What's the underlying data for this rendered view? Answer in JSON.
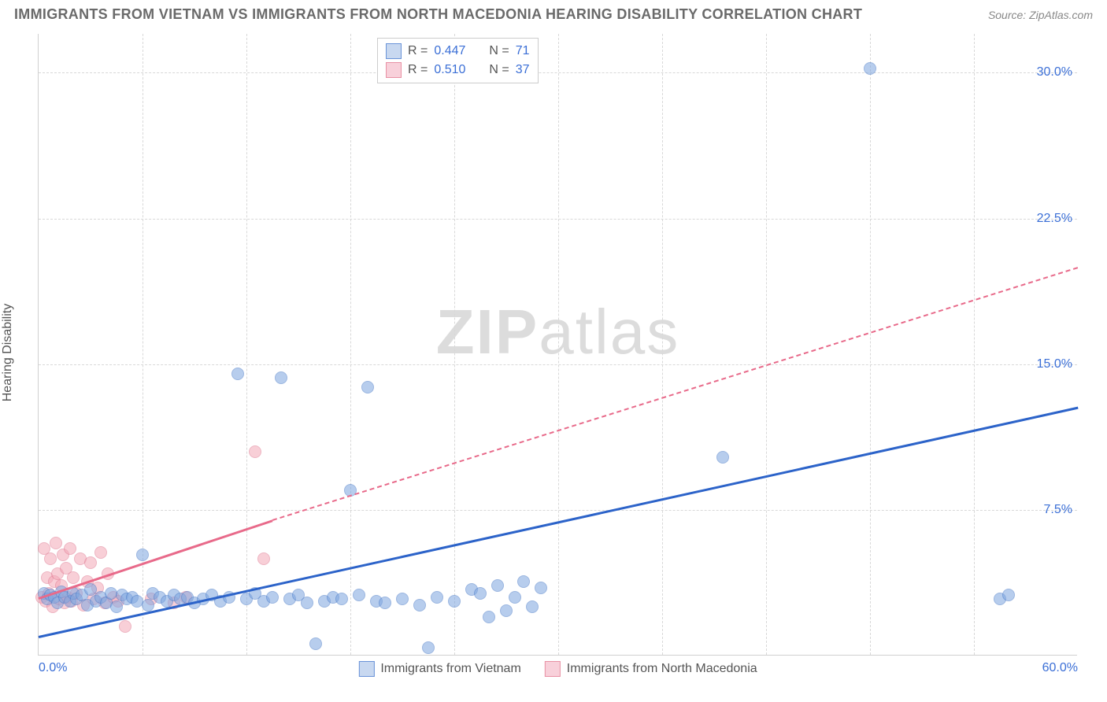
{
  "title": "IMMIGRANTS FROM VIETNAM VS IMMIGRANTS FROM NORTH MACEDONIA HEARING DISABILITY CORRELATION CHART",
  "source_label": "Source: ZipAtlas.com",
  "ylabel": "Hearing Disability",
  "watermark_bold": "ZIP",
  "watermark_rest": "atlas",
  "chart": {
    "type": "scatter",
    "background_color": "#ffffff",
    "grid_color": "#d8d8d8",
    "border_color": "#d0d0d0",
    "xlim": [
      0,
      60
    ],
    "ylim": [
      0,
      32
    ],
    "y_ticks": [
      7.5,
      15.0,
      22.5,
      30.0
    ],
    "y_tick_labels": [
      "7.5%",
      "15.0%",
      "22.5%",
      "30.0%"
    ],
    "x_ticks": [
      0,
      60
    ],
    "x_tick_labels": [
      "0.0%",
      "60.0%"
    ],
    "x_minor_gridlines": [
      6,
      12,
      18,
      24,
      30,
      36,
      42,
      48,
      54
    ],
    "y_label_color": "#555555",
    "tick_label_color": "#3b6fd6",
    "tick_label_fontsize": 16,
    "title_fontsize": 18,
    "title_color": "#6a6a6a",
    "point_radius": 8,
    "point_opacity": 0.55,
    "series": [
      {
        "name": "Immigrants from Vietnam",
        "color_fill": "#7ea6e0",
        "color_stroke": "#4a7bc8",
        "swatch_fill": "#c8d8f0",
        "swatch_border": "#6a93d8",
        "R": "0.447",
        "N": "71",
        "trend_color": "#2c63c9",
        "trend_style": "solid",
        "trend_start": [
          0,
          1.0
        ],
        "trend_end": [
          60,
          12.8
        ],
        "points": [
          [
            0.3,
            3.2
          ],
          [
            0.5,
            2.9
          ],
          [
            0.7,
            3.1
          ],
          [
            0.9,
            3.0
          ],
          [
            1.1,
            2.7
          ],
          [
            1.3,
            3.3
          ],
          [
            1.5,
            3.0
          ],
          [
            1.8,
            2.8
          ],
          [
            2.0,
            3.2
          ],
          [
            2.2,
            2.9
          ],
          [
            2.5,
            3.1
          ],
          [
            2.8,
            2.6
          ],
          [
            3.0,
            3.4
          ],
          [
            3.3,
            2.8
          ],
          [
            3.6,
            3.0
          ],
          [
            3.9,
            2.7
          ],
          [
            4.2,
            3.2
          ],
          [
            4.5,
            2.5
          ],
          [
            4.8,
            3.1
          ],
          [
            5.1,
            2.9
          ],
          [
            5.4,
            3.0
          ],
          [
            5.7,
            2.8
          ],
          [
            6.0,
            5.2
          ],
          [
            6.3,
            2.6
          ],
          [
            6.6,
            3.2
          ],
          [
            7.0,
            3.0
          ],
          [
            7.4,
            2.8
          ],
          [
            7.8,
            3.1
          ],
          [
            8.2,
            2.9
          ],
          [
            8.6,
            3.0
          ],
          [
            9.0,
            2.7
          ],
          [
            9.5,
            2.9
          ],
          [
            10.0,
            3.1
          ],
          [
            10.5,
            2.8
          ],
          [
            11.0,
            3.0
          ],
          [
            11.5,
            14.5
          ],
          [
            12.0,
            2.9
          ],
          [
            12.5,
            3.2
          ],
          [
            13.0,
            2.8
          ],
          [
            13.5,
            3.0
          ],
          [
            14.0,
            14.3
          ],
          [
            14.5,
            2.9
          ],
          [
            15.0,
            3.1
          ],
          [
            15.5,
            2.7
          ],
          [
            16.0,
            0.6
          ],
          [
            16.5,
            2.8
          ],
          [
            17.0,
            3.0
          ],
          [
            17.5,
            2.9
          ],
          [
            18.0,
            8.5
          ],
          [
            18.5,
            3.1
          ],
          [
            19.0,
            13.8
          ],
          [
            19.5,
            2.8
          ],
          [
            20.0,
            2.7
          ],
          [
            21.0,
            2.9
          ],
          [
            22.0,
            2.6
          ],
          [
            22.5,
            0.4
          ],
          [
            23.0,
            3.0
          ],
          [
            24.0,
            2.8
          ],
          [
            25.0,
            3.4
          ],
          [
            25.5,
            3.2
          ],
          [
            26.0,
            2.0
          ],
          [
            26.5,
            3.6
          ],
          [
            27.0,
            2.3
          ],
          [
            27.5,
            3.0
          ],
          [
            28.0,
            3.8
          ],
          [
            28.5,
            2.5
          ],
          [
            29.0,
            3.5
          ],
          [
            39.5,
            10.2
          ],
          [
            48.0,
            30.2
          ],
          [
            55.5,
            2.9
          ],
          [
            56.0,
            3.1
          ]
        ]
      },
      {
        "name": "Immigrants from North Macedonia",
        "color_fill": "#f4a8b8",
        "color_stroke": "#e07a92",
        "swatch_fill": "#f8d0da",
        "swatch_border": "#e890a4",
        "R": "0.510",
        "N": "37",
        "trend_color": "#e86a8a",
        "trend_style": "solid-then-dashed",
        "trend_start": [
          0,
          3.0
        ],
        "trend_solid_end": [
          13.5,
          7.0
        ],
        "trend_end": [
          60,
          20.0
        ],
        "points": [
          [
            0.2,
            3.0
          ],
          [
            0.3,
            5.5
          ],
          [
            0.4,
            2.8
          ],
          [
            0.5,
            4.0
          ],
          [
            0.6,
            3.2
          ],
          [
            0.7,
            5.0
          ],
          [
            0.8,
            2.5
          ],
          [
            0.9,
            3.8
          ],
          [
            1.0,
            5.8
          ],
          [
            1.1,
            4.2
          ],
          [
            1.2,
            2.9
          ],
          [
            1.3,
            3.6
          ],
          [
            1.4,
            5.2
          ],
          [
            1.5,
            2.7
          ],
          [
            1.6,
            4.5
          ],
          [
            1.7,
            3.0
          ],
          [
            1.8,
            5.5
          ],
          [
            1.9,
            2.8
          ],
          [
            2.0,
            4.0
          ],
          [
            2.2,
            3.2
          ],
          [
            2.4,
            5.0
          ],
          [
            2.6,
            2.6
          ],
          [
            2.8,
            3.8
          ],
          [
            3.0,
            4.8
          ],
          [
            3.2,
            2.9
          ],
          [
            3.4,
            3.5
          ],
          [
            3.6,
            5.3
          ],
          [
            3.8,
            2.7
          ],
          [
            4.0,
            4.2
          ],
          [
            4.3,
            3.0
          ],
          [
            4.6,
            2.8
          ],
          [
            5.0,
            1.5
          ],
          [
            6.5,
            2.9
          ],
          [
            7.8,
            2.7
          ],
          [
            8.5,
            3.0
          ],
          [
            12.5,
            10.5
          ],
          [
            13.0,
            5.0
          ]
        ]
      }
    ],
    "legend_top": {
      "border_color": "#cccccc",
      "R_label": "R =",
      "N_label": "N ="
    },
    "bottom_legend_labels": [
      "Immigrants from Vietnam",
      "Immigrants from North Macedonia"
    ]
  }
}
